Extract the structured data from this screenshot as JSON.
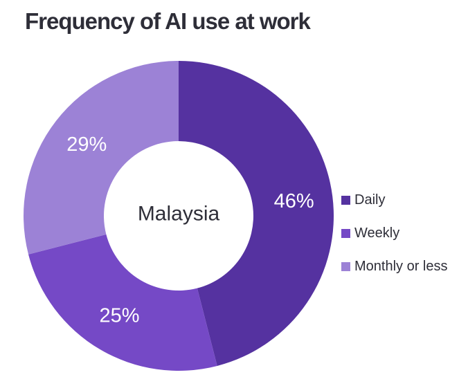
{
  "chart_data": {
    "type": "pie",
    "donut": true,
    "title": "Frequency of AI use at work",
    "center_label": "Malaysia",
    "categories": [
      "Daily",
      "Weekly",
      "Monthly or less"
    ],
    "values": [
      46,
      25,
      29
    ],
    "value_labels": [
      "46%",
      "25%",
      "29%"
    ],
    "colors": [
      "#5532A0",
      "#7549C6",
      "#9C82D6"
    ],
    "value_label_color": "#FFFFFF",
    "text_color": "#2E2E38",
    "legend_position": "right",
    "start_angle_deg": 0,
    "direction": "clockwise"
  }
}
